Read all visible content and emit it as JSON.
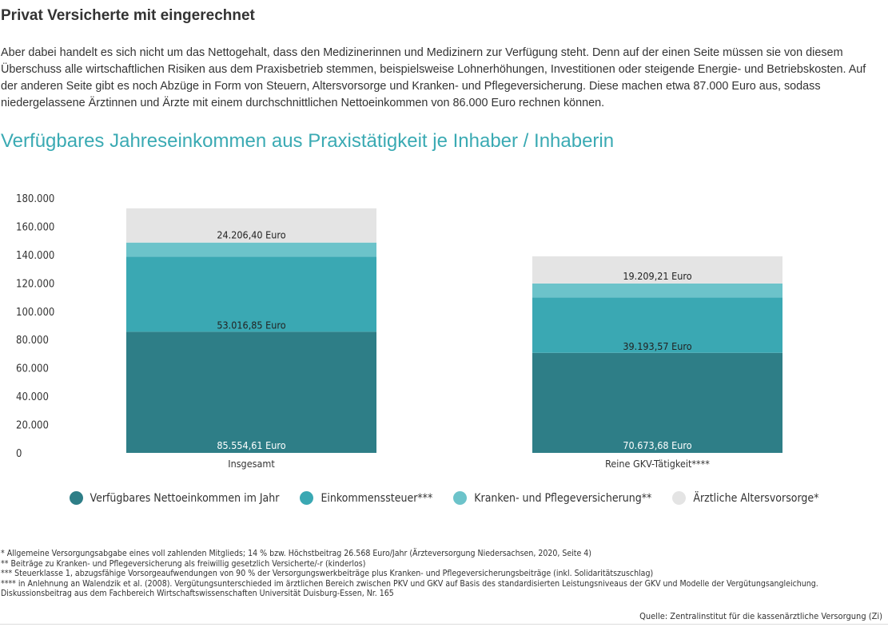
{
  "article": {
    "heading": "Privat Versicherte mit eingerechnet",
    "paragraph": "Aber dabei handelt es sich nicht um das Nettogehalt, dass den Medizinerinnen und Medizinern zur Verfügung steht. Denn auf der einen Seite müssen sie von diesem Überschuss alle wirtschaftlichen Risiken aus dem Praxisbetrieb stemmen, beispielsweise Lohnerhöhungen, Investitionen oder steigende Energie- und Betriebskosten. Auf der anderen Seite gibt es noch Abzüge in Form von Steuern, Altersvorsorge und Kranken- und Pflegeversicherung. Diese machen etwa 87.000 Euro aus, sodass niedergelassene Ärztinnen und Ärzte mit einem durchschnittlichen Nettoeinkommen von 86.000 Euro rechnen können."
  },
  "chart_data": {
    "type": "bar",
    "stacked": true,
    "title": "Verfügbares Jahreseinkommen aus Praxistätigkeit je Inhaber / Inhaberin",
    "categories": [
      "Insgesamt",
      "Reine GKV-Tätigkeit****"
    ],
    "ylim": [
      0,
      180000
    ],
    "yticks": [
      0,
      20000,
      40000,
      60000,
      80000,
      100000,
      120000,
      140000,
      160000,
      180000
    ],
    "ytick_labels": [
      "0",
      "20.000",
      "40.000",
      "60.000",
      "80.000",
      "100.000",
      "120.000",
      "140.000",
      "160.000",
      "180.000"
    ],
    "grid": false,
    "legend_position": "bottom-center",
    "series": [
      {
        "name": "Verfügbares Nettoeinkommen im Jahr",
        "color": "#2e7e87",
        "values": [
          85554.61,
          70673.68
        ],
        "labels": [
          "85.554,61 Euro",
          "70.673,68 Euro"
        ]
      },
      {
        "name": "Einkommenssteuer***",
        "color": "#3aa8b3",
        "values": [
          53016.85,
          39193.57
        ],
        "labels": [
          "53.016,85 Euro",
          "39.193,57 Euro"
        ]
      },
      {
        "name": "Kranken- und Pflegeversicherung**",
        "color": "#6cc3ca",
        "values": [
          10000,
          9800
        ],
        "labels": [
          "",
          ""
        ]
      },
      {
        "name": "Ärztliche Altersvorsorge*",
        "color": "#e4e4e4",
        "values": [
          24206.4,
          19209.21
        ],
        "labels": [
          "24.206,40 Euro",
          "19.209,21 Euro"
        ]
      }
    ]
  },
  "footnotes": [
    "* Allgemeine Versorgungsabgabe eines voll zahlenden Mitglieds; 14 % bzw. Höchstbeitrag 26.568 Euro/Jahr (Ärzteversorgung Niedersachsen, 2020, Seite 4)",
    "** Beiträge zu Kranken- und Pflegeversicherung als freiwillig gesetzlich Versicherte/-r (kinderlos)",
    "*** Steuerklasse 1, abzugsfähige Vorsorgeaufwendungen von 90 % der Versorgungswerkbeiträge plus Kranken- und Pflegeversicherungsbeiträge (inkl. Solidaritätszuschlag)",
    "**** in Anlehnung an Walendzik et al. (2008). Vergütungsunterschieded im ärztlichen Bereich zwischen PKV und GKV auf Basis des standardisierten Leistungsniveaus der GKV und Modelle der Vergütungsangleichung. Diskussionsbeitrag aus dem Fachbereich Wirtschaftswissenschaften Universität Duisburg-Essen, Nr. 165"
  ],
  "source": "Quelle: Zentralinstitut für die kassenärztliche Versorgung (Zi)"
}
